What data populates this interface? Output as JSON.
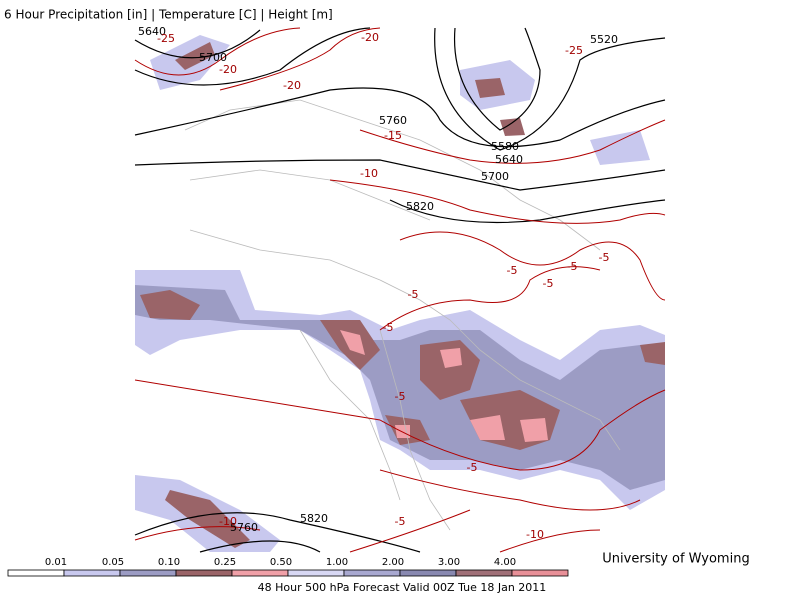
{
  "header": {
    "title": "6 Hour Precipitation [in] | Temperature [C] | Height [m]"
  },
  "height_labels": [
    "5640",
    "5700",
    "5760",
    "5580",
    "5640",
    "5700",
    "5820",
    "5520",
    "5820",
    "5760"
  ],
  "temperature_labels": [
    "-25",
    "-20",
    "-20",
    "-20",
    "-25",
    "-15",
    "-10",
    "-5",
    "-5",
    "-5",
    "-5",
    "-5",
    "-5",
    "-5",
    "-5",
    "-5",
    "-10",
    "-10"
  ],
  "colorbar": {
    "labels": [
      "0.01",
      "0.05",
      "0.10",
      "0.25",
      "0.50",
      "1.00",
      "2.00",
      "3.00",
      "4.00"
    ]
  },
  "credit": "University of Wyoming",
  "footer": "48 Hour 500 hPa Forecast Valid 00Z Tue 18 Jan 2011"
}
